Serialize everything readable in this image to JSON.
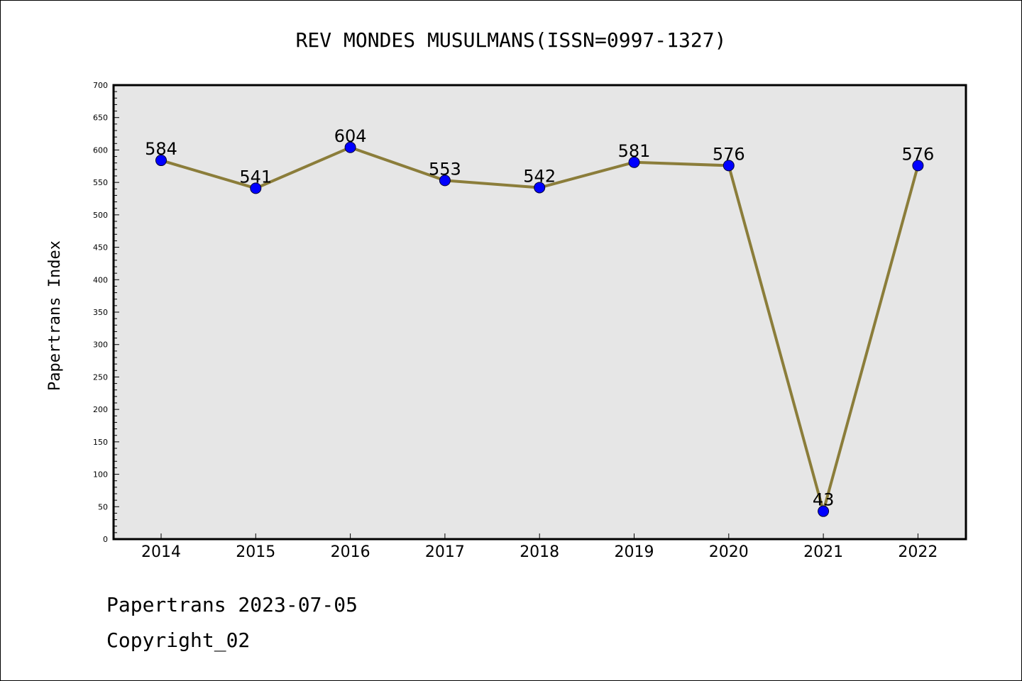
{
  "chart_data": {
    "type": "line",
    "title": "REV MONDES MUSULMANS(ISSN=0997-1327)",
    "xlabel": "",
    "ylabel": "Papertrans Index",
    "ylim": [
      0,
      700
    ],
    "yticks": [
      0,
      50,
      100,
      150,
      200,
      250,
      300,
      350,
      400,
      450,
      500,
      550,
      600,
      650,
      700
    ],
    "categories": [
      "2014",
      "2015",
      "2016",
      "2017",
      "2018",
      "2019",
      "2020",
      "2021",
      "2022"
    ],
    "series": [
      {
        "values": [
          584,
          541,
          604,
          553,
          542,
          581,
          576,
          43,
          576
        ]
      }
    ],
    "data_labels": [
      "584",
      "541",
      "604",
      "553",
      "542",
      "581",
      "576",
      "43",
      "576"
    ],
    "grid": false,
    "colors": {
      "line": "#8b7d3a",
      "marker": "#0000ff",
      "marker_edge": "#000033",
      "plot_background": "#e6e6e6"
    }
  },
  "footer": {
    "line1": "Papertrans 2023-07-05",
    "line2": "Copyright_02"
  }
}
